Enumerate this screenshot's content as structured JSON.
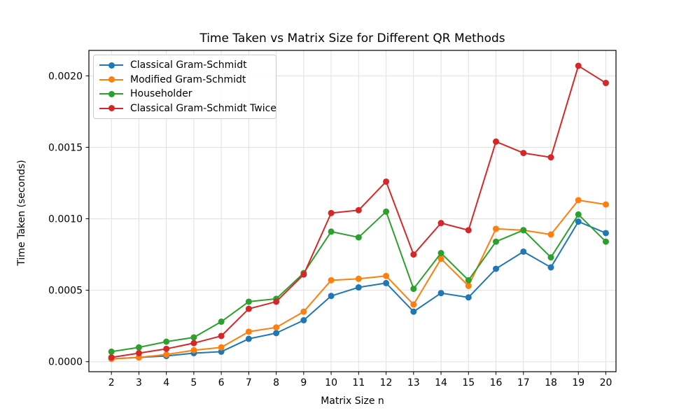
{
  "chart_data": {
    "type": "line",
    "title": "Time Taken vs Matrix Size for Different QR Methods",
    "xlabel": "Matrix Size n",
    "ylabel": "Time Taken (seconds)",
    "x": [
      2,
      3,
      4,
      5,
      6,
      7,
      8,
      9,
      10,
      11,
      12,
      13,
      14,
      15,
      16,
      17,
      18,
      19,
      20
    ],
    "series": [
      {
        "name": "Classical Gram-Schmidt",
        "color": "#1f77b4",
        "marker": "circle",
        "values": [
          2e-05,
          3e-05,
          4e-05,
          6e-05,
          7e-05,
          0.00016,
          0.0002,
          0.00029,
          0.00046,
          0.00052,
          0.00055,
          0.00035,
          0.00048,
          0.00045,
          0.00065,
          0.00077,
          0.00066,
          0.00098,
          0.0009
        ]
      },
      {
        "name": "Modified Gram-Schmidt",
        "color": "#ff7f0e",
        "marker": "circle",
        "values": [
          2e-05,
          3e-05,
          5e-05,
          8e-05,
          0.0001,
          0.00021,
          0.00024,
          0.00035,
          0.00057,
          0.00058,
          0.0006,
          0.0004,
          0.00072,
          0.00053,
          0.00093,
          0.00092,
          0.00089,
          0.00113,
          0.0011
        ]
      },
      {
        "name": "Householder",
        "color": "#2ca02c",
        "marker": "circle",
        "values": [
          7e-05,
          0.0001,
          0.00014,
          0.00017,
          0.00028,
          0.00042,
          0.00044,
          0.00062,
          0.00091,
          0.00087,
          0.00105,
          0.00051,
          0.00076,
          0.00057,
          0.00084,
          0.00092,
          0.00073,
          0.00103,
          0.00084
        ]
      },
      {
        "name": "Classical Gram-Schmidt Twice",
        "color": "#d62728",
        "marker": "circle",
        "values": [
          3e-05,
          6e-05,
          9e-05,
          0.00013,
          0.00018,
          0.00037,
          0.00042,
          0.00061,
          0.00104,
          0.00106,
          0.00126,
          0.00075,
          0.00097,
          0.00092,
          0.00154,
          0.00146,
          0.00143,
          0.00207,
          0.00195
        ]
      }
    ],
    "xticks": [
      2,
      3,
      4,
      5,
      6,
      7,
      8,
      9,
      10,
      11,
      12,
      13,
      14,
      15,
      16,
      17,
      18,
      19,
      20
    ],
    "ytick_values": [
      0.0,
      0.0005,
      0.001,
      0.0015,
      0.002
    ],
    "ytick_labels": [
      "0.0000",
      "0.0005",
      "0.0010",
      "0.0015",
      "0.0020"
    ],
    "xlim": [
      1.18,
      20.37
    ],
    "ylim": [
      -7e-05,
      0.002178
    ],
    "grid": true,
    "legend_position": "upper-left",
    "grid_color": "#e0e0e0",
    "spine_color": "#000000",
    "background_color": "#ffffff"
  }
}
